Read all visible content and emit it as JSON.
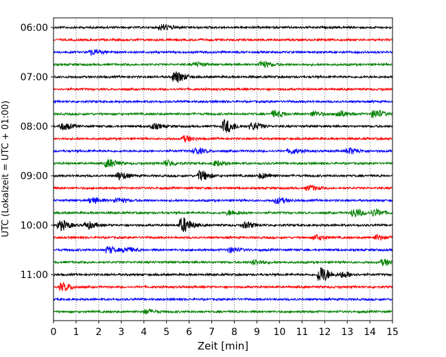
{
  "chart_data": {
    "type": "line",
    "title": "",
    "xlabel": "Zeit  [min]",
    "ylabel": "UTC (Lokalzeit = UTC + 01:00)",
    "xlim": [
      0,
      15
    ],
    "x_ticks": [
      "0",
      "1",
      "2",
      "3",
      "4",
      "5",
      "6",
      "7",
      "8",
      "9",
      "10",
      "11",
      "12",
      "13",
      "14",
      "15"
    ],
    "y_ticks": [
      "06:00",
      "07:00",
      "08:00",
      "09:00",
      "10:00",
      "11:00"
    ],
    "grid": "vertical dotted",
    "trace_interval_min": 15,
    "trace_colors": [
      "#000000",
      "#ff0000",
      "#0000ff",
      "#008000"
    ],
    "traces": [
      {
        "start": "06:00",
        "events": [
          [
            4.8,
            0.35
          ]
        ]
      },
      {
        "start": "06:15",
        "events": []
      },
      {
        "start": "06:30",
        "events": [
          [
            1.7,
            0.3
          ]
        ]
      },
      {
        "start": "06:45",
        "events": [
          [
            9.2,
            0.4
          ],
          [
            6.3,
            0.25
          ]
        ]
      },
      {
        "start": "07:00",
        "events": [
          [
            5.4,
            0.7
          ]
        ]
      },
      {
        "start": "07:15",
        "events": []
      },
      {
        "start": "07:30",
        "events": []
      },
      {
        "start": "07:45",
        "events": [
          [
            9.8,
            0.4
          ],
          [
            12.6,
            0.4
          ],
          [
            14.2,
            0.5
          ],
          [
            11.5,
            0.3
          ]
        ]
      },
      {
        "start": "08:00",
        "events": [
          [
            0.4,
            0.4
          ],
          [
            7.6,
            0.8
          ],
          [
            8.8,
            0.45
          ],
          [
            4.4,
            0.3
          ]
        ]
      },
      {
        "start": "08:15",
        "events": [
          [
            5.8,
            0.35
          ]
        ]
      },
      {
        "start": "08:30",
        "events": [
          [
            6.3,
            0.35
          ],
          [
            13.1,
            0.35
          ],
          [
            10.5,
            0.3
          ]
        ]
      },
      {
        "start": "08:45",
        "events": [
          [
            2.4,
            0.5
          ],
          [
            5.0,
            0.35
          ],
          [
            7.2,
            0.3
          ]
        ]
      },
      {
        "start": "09:00",
        "events": [
          [
            2.9,
            0.45
          ],
          [
            6.5,
            0.6
          ],
          [
            9.2,
            0.3
          ]
        ]
      },
      {
        "start": "09:15",
        "events": [
          [
            11.3,
            0.3
          ]
        ]
      },
      {
        "start": "09:30",
        "events": [
          [
            1.7,
            0.35
          ],
          [
            2.8,
            0.3
          ],
          [
            9.9,
            0.35
          ]
        ]
      },
      {
        "start": "09:45",
        "events": [
          [
            13.3,
            0.5
          ],
          [
            14.2,
            0.4
          ],
          [
            7.8,
            0.3
          ]
        ]
      },
      {
        "start": "10:00",
        "events": [
          [
            0.3,
            0.6
          ],
          [
            5.7,
            0.9
          ],
          [
            8.5,
            0.35
          ],
          [
            1.5,
            0.4
          ]
        ]
      },
      {
        "start": "10:15",
        "events": [
          [
            11.6,
            0.3
          ],
          [
            14.3,
            0.3
          ]
        ]
      },
      {
        "start": "10:30",
        "events": [
          [
            2.4,
            0.4
          ],
          [
            3.2,
            0.3
          ],
          [
            7.8,
            0.3
          ]
        ]
      },
      {
        "start": "10:45",
        "events": [
          [
            14.6,
            0.35
          ],
          [
            8.9,
            0.3
          ]
        ]
      },
      {
        "start": "11:00",
        "events": [
          [
            11.8,
            1.0
          ],
          [
            12.8,
            0.35
          ]
        ]
      },
      {
        "start": "11:15",
        "events": [
          [
            0.4,
            0.45
          ]
        ]
      },
      {
        "start": "11:30",
        "events": []
      },
      {
        "start": "11:45",
        "events": [
          [
            4.1,
            0.25
          ]
        ]
      }
    ]
  }
}
